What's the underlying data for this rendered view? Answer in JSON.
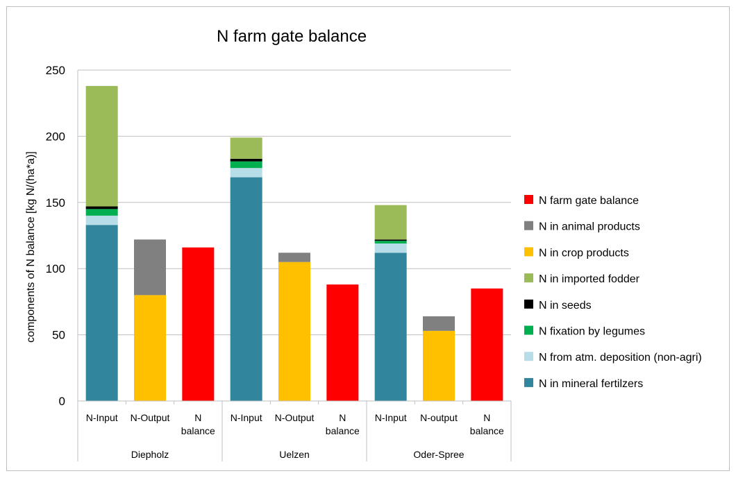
{
  "chart_data": {
    "type": "bar",
    "stacked": true,
    "title": "N farm gate balance",
    "xlabel": "",
    "ylabel": "components of N balance [kg N/(ha*a)]",
    "ylim": [
      0,
      250
    ],
    "yticks": [
      0,
      50,
      100,
      150,
      200,
      250
    ],
    "grid": true,
    "legend_position": "right",
    "groups": [
      "Diepholz",
      "Uelzen",
      "Oder-Spree"
    ],
    "categories": [
      "N-Input",
      "N-Output",
      "N balance",
      "N-Input",
      "N-Output",
      "N balance",
      "N-Input",
      "N-output",
      "N balance"
    ],
    "series": [
      {
        "name": "N in mineral fertilzers",
        "color": "#31859c",
        "values": [
          133,
          0,
          0,
          169,
          0,
          0,
          112,
          0,
          0
        ]
      },
      {
        "name": "N from atm. deposition (non-agri)",
        "color": "#b7dee8",
        "values": [
          7,
          0,
          0,
          7,
          0,
          0,
          7,
          0,
          0
        ]
      },
      {
        "name": "N fixation by legumes",
        "color": "#00b050",
        "values": [
          5,
          0,
          0,
          5,
          0,
          0,
          2,
          0,
          0
        ]
      },
      {
        "name": "N in seeds",
        "color": "#000000",
        "values": [
          2,
          0,
          0,
          2,
          0,
          0,
          1,
          0,
          0
        ]
      },
      {
        "name": "N in imported fodder",
        "color": "#9bbb59",
        "values": [
          91,
          0,
          0,
          16,
          0,
          0,
          26,
          0,
          0
        ]
      },
      {
        "name": "N in crop products",
        "color": "#ffc000",
        "values": [
          0,
          80,
          0,
          0,
          105,
          0,
          0,
          53,
          0
        ]
      },
      {
        "name": "N in animal products",
        "color": "#808080",
        "values": [
          0,
          42,
          0,
          0,
          7,
          0,
          0,
          11,
          0
        ]
      },
      {
        "name": "N farm gate balance",
        "color": "#ff0000",
        "values": [
          0,
          0,
          116,
          0,
          0,
          88,
          0,
          0,
          85
        ]
      }
    ],
    "legend_order": [
      "N farm gate balance",
      "N in animal products",
      "N in crop products",
      "N in imported fodder",
      "N in seeds",
      "N fixation by legumes",
      "N from atm. deposition (non-agri)",
      "N in mineral fertilzers"
    ]
  }
}
